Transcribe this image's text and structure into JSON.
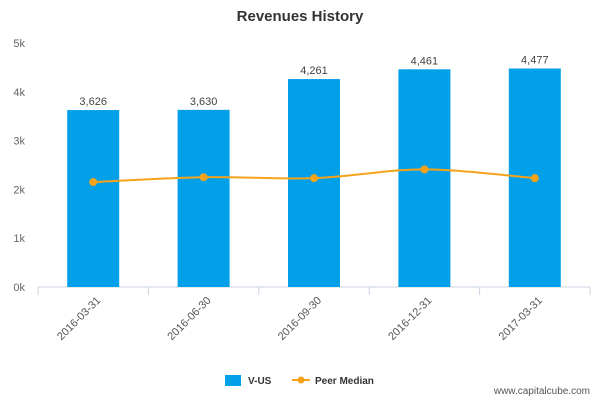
{
  "watermark": "www.capitalcube.com",
  "colors": {
    "bars": "#02a0e9",
    "peer_line": "#f6a21b",
    "axis": "#c8d4e0"
  },
  "chart_data": {
    "type": "bar",
    "title": "Revenues History",
    "xlabel": "",
    "ylabel": "",
    "categories": [
      "2016-03-31",
      "2016-06-30",
      "2016-09-30",
      "2016-12-31",
      "2017-03-31"
    ],
    "ylim": [
      0,
      5000
    ],
    "yticks": [
      0,
      1000,
      2000,
      3000,
      4000,
      5000
    ],
    "ytick_labels": [
      "0k",
      "1k",
      "2k",
      "3k",
      "4k",
      "5k"
    ],
    "grid": false,
    "legend_position": "bottom",
    "series": [
      {
        "name": "V-US",
        "type": "bar",
        "values": [
          3626,
          3630,
          4261,
          4461,
          4477
        ],
        "labels": [
          "3,626",
          "3,630",
          "4,261",
          "4,461",
          "4,477"
        ]
      },
      {
        "name": "Peer Median",
        "type": "line",
        "values": [
          2150,
          2250,
          2230,
          2410,
          2230
        ]
      }
    ]
  }
}
